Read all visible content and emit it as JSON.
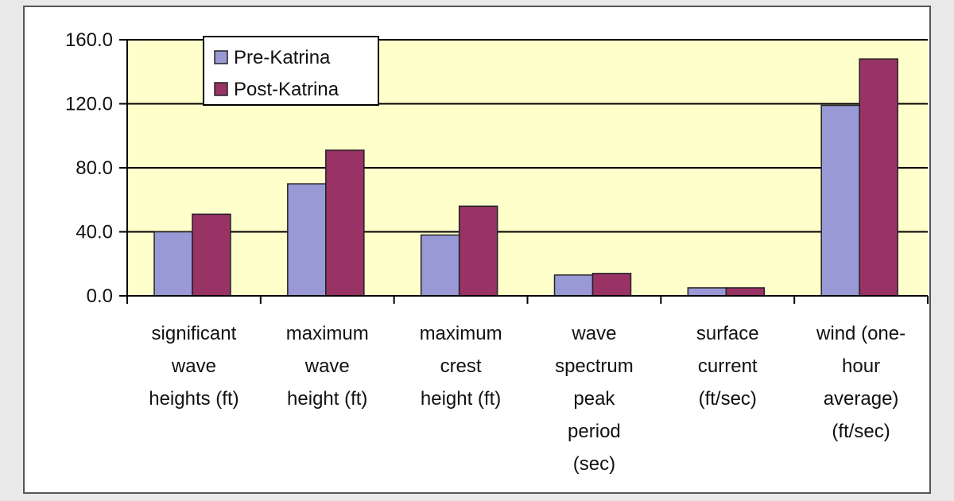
{
  "chart_data": {
    "type": "bar",
    "title": "",
    "xlabel": "",
    "ylabel": "",
    "ylim": [
      0,
      160
    ],
    "yticks": [
      "0.0",
      "40.0",
      "80.0",
      "120.0",
      "160.0"
    ],
    "ytick_values": [
      0,
      40,
      80,
      120,
      160
    ],
    "grid": true,
    "legend_position": "top-left",
    "categories": [
      [
        "significant",
        "wave",
        "heights (ft)"
      ],
      [
        "maximum",
        "wave",
        "height (ft)"
      ],
      [
        "maximum",
        "crest",
        "height (ft)"
      ],
      [
        "wave",
        "spectrum",
        "peak",
        "period",
        "(sec)"
      ],
      [
        "surface",
        "current",
        "(ft/sec)"
      ],
      [
        "wind (one-",
        "hour",
        "average)",
        "(ft/sec)"
      ]
    ],
    "series": [
      {
        "name": "Pre-Katrina",
        "color": "#9999d6",
        "values": [
          40,
          70,
          38,
          13,
          5,
          119
        ]
      },
      {
        "name": "Post-Katrina",
        "color": "#993366",
        "values": [
          51,
          91,
          56,
          14,
          5,
          148
        ]
      }
    ],
    "colors": {
      "plot_background": "#ffffcc",
      "outer_background": "#ffffff",
      "gridline": "#000000",
      "page_background": "#e9e9e9"
    }
  }
}
